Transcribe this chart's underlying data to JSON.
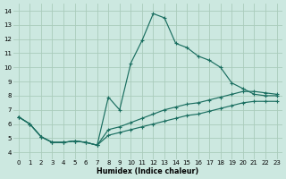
{
  "xlabel": "Humidex (Indice chaleur)",
  "bg_color": "#cce8e0",
  "grid_color": "#aaccbb",
  "line_color": "#1a6e60",
  "xlim": [
    -0.5,
    23.5
  ],
  "ylim": [
    3.5,
    14.5
  ],
  "xticks": [
    0,
    1,
    2,
    3,
    4,
    5,
    6,
    7,
    8,
    9,
    10,
    11,
    12,
    13,
    14,
    15,
    16,
    17,
    18,
    19,
    20,
    21,
    22,
    23
  ],
  "yticks": [
    4,
    5,
    6,
    7,
    8,
    9,
    10,
    11,
    12,
    13,
    14
  ],
  "line1_y": [
    6.5,
    6.0,
    5.1,
    4.7,
    4.7,
    4.8,
    4.7,
    4.5,
    7.9,
    7.0,
    10.3,
    11.9,
    13.8,
    13.5,
    11.7,
    11.4,
    10.8,
    10.5,
    10.0,
    8.9,
    8.5,
    8.1,
    8.0,
    8.0
  ],
  "line2_y": [
    6.5,
    6.0,
    5.1,
    4.7,
    4.7,
    4.8,
    4.7,
    4.5,
    5.6,
    5.8,
    6.1,
    6.4,
    6.7,
    7.0,
    7.2,
    7.4,
    7.5,
    7.7,
    7.9,
    8.1,
    8.3,
    8.3,
    8.2,
    8.1
  ],
  "line3_y": [
    6.5,
    6.0,
    5.1,
    4.7,
    4.7,
    4.8,
    4.7,
    4.5,
    5.2,
    5.4,
    5.6,
    5.8,
    6.0,
    6.2,
    6.4,
    6.6,
    6.7,
    6.9,
    7.1,
    7.3,
    7.5,
    7.6,
    7.6,
    7.6
  ]
}
